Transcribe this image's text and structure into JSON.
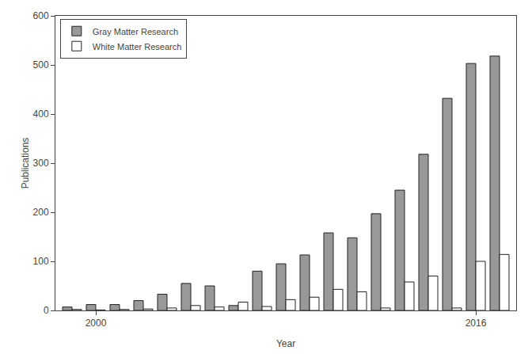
{
  "chart_data": {
    "type": "bar",
    "x": [
      1999,
      2000,
      2001,
      2002,
      2003,
      2004,
      2005,
      2006,
      2007,
      2008,
      2009,
      2010,
      2011,
      2012,
      2013,
      2014,
      2015,
      2016,
      2017
    ],
    "series": [
      {
        "name": "Gray Matter Research",
        "color": "#999999",
        "values": [
          7,
          12,
          12,
          20,
          33,
          55,
          50,
          10,
          80,
          95,
          113,
          158,
          148,
          197,
          245,
          318,
          432,
          503,
          518
        ]
      },
      {
        "name": "White Matter Research",
        "color": "#ffffff",
        "values": [
          2,
          1,
          2,
          3,
          5,
          10,
          7,
          17,
          8,
          22,
          27,
          43,
          38,
          5,
          58,
          70,
          5,
          100,
          114
        ]
      }
    ],
    "xlabel": "Year",
    "ylabel": "Publications",
    "xlim": [
      1998.3,
      2017.7
    ],
    "xticks": [
      2000,
      2016
    ],
    "ylim": [
      0,
      600
    ],
    "yticks": [
      0,
      100,
      200,
      300,
      400,
      500,
      600
    ],
    "grid": false,
    "legend": "upper left"
  }
}
